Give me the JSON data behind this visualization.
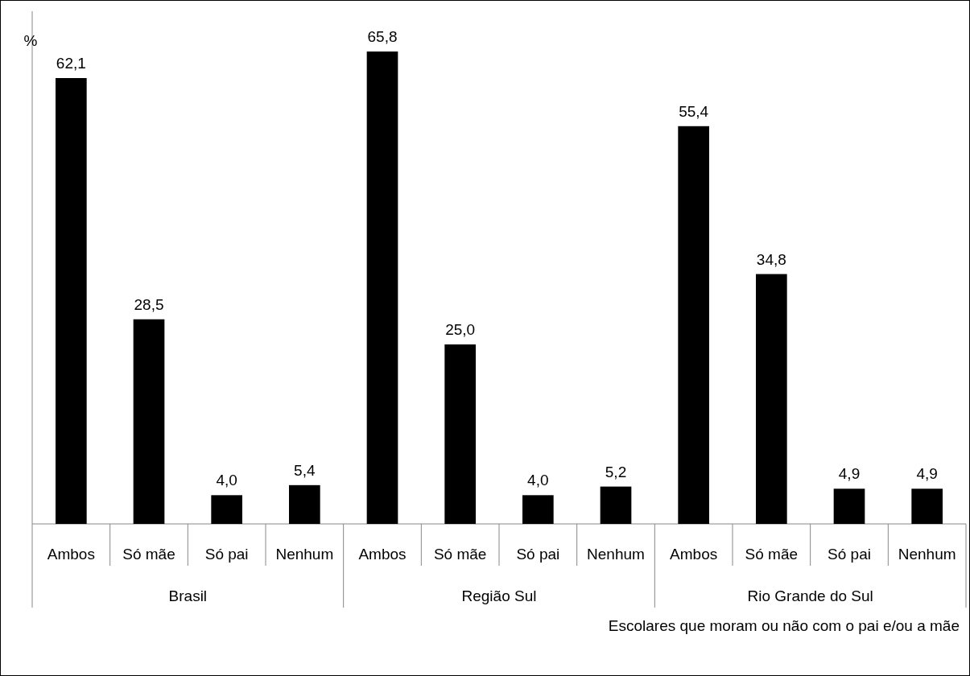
{
  "chart_data": {
    "type": "bar",
    "ylabel": "%",
    "xlabel": "Escolares que moram ou não com o pai e/ou a mãe",
    "categories": [
      "Ambos",
      "Só mãe",
      "Só pai",
      "Nenhum",
      "Ambos",
      "Só mãe",
      "Só pai",
      "Nenhum",
      "Ambos",
      "Só mãe",
      "Só pai",
      "Nenhum"
    ],
    "values": [
      62.1,
      28.5,
      4.0,
      5.4,
      65.8,
      25.0,
      4.0,
      5.2,
      55.4,
      34.8,
      4.9,
      4.9
    ],
    "value_labels": [
      "62,1",
      "28,5",
      "4,0",
      "5,4",
      "65,8",
      "25,0",
      "4,0",
      "5,2",
      "55,4",
      "34,8",
      "4,9",
      "4,9"
    ],
    "color": "#000000",
    "annotations": [
      "Brasil",
      "Região Sul",
      "Rio Grande do Sul"
    ]
  }
}
